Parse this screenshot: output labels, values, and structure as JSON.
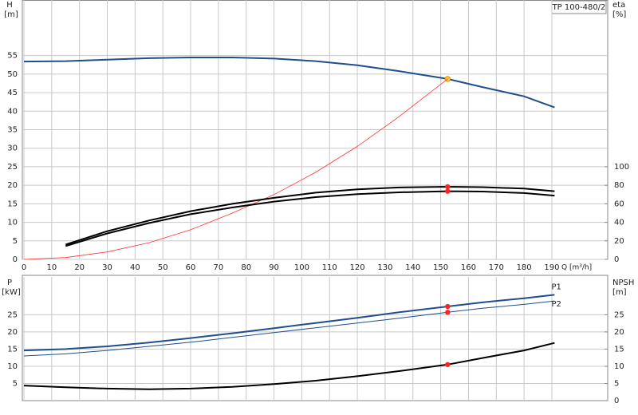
{
  "chart_data": [
    {
      "type": "line",
      "title": "TP 100-480/2",
      "xlabel": "Q [m³/h]",
      "ylabel": "H",
      "yunit": "[m]",
      "y2label": "eta",
      "y2unit": "[%]",
      "x": [
        0,
        15,
        30,
        45,
        60,
        75,
        90,
        105,
        120,
        135,
        152.5,
        165,
        180,
        191
      ],
      "xlim": [
        0,
        210
      ],
      "xticks": [
        0,
        10,
        20,
        30,
        40,
        50,
        60,
        70,
        80,
        90,
        100,
        110,
        120,
        130,
        140,
        150,
        160,
        170,
        180,
        190
      ],
      "ylim": [
        0,
        70
      ],
      "yticks": [
        0,
        5,
        10,
        15,
        20,
        25,
        30,
        35,
        40,
        45,
        50,
        55
      ],
      "y2lim": [
        0,
        280
      ],
      "y2ticks": [
        0,
        20,
        40,
        60,
        80,
        100
      ],
      "grid": true,
      "duty_point": 152.5,
      "series": [
        {
          "color": "#1f4e8c",
          "width": 2,
          "marker_color": "#ffcc33",
          "values": [
            53.4,
            53.5,
            53.9,
            54.3,
            54.5,
            54.5,
            54.2,
            53.5,
            52.4,
            50.8,
            48.7,
            46.5,
            44,
            41
          ]
        },
        {
          "color": "#ff3333",
          "width": 0.8,
          "values": [
            0,
            0.5,
            2,
            4.5,
            8,
            12.5,
            17.5,
            23.5,
            30.5,
            38.5,
            48.7,
            null,
            null,
            null
          ]
        },
        {
          "color": "#000000",
          "width": 2,
          "axis": "y2",
          "marker_color": "#ff2222",
          "values": [
            null,
            16,
            30.4,
            42,
            52,
            60,
            66.4,
            72,
            75.6,
            77.6,
            78.4,
            78,
            76.4,
            73.6
          ]
        },
        {
          "color": "#000000",
          "width": 2,
          "axis": "y2",
          "marker_color": "#ff2222",
          "values": [
            null,
            14.4,
            28,
            39.2,
            48.8,
            56,
            62.4,
            67.2,
            70.4,
            72.4,
            73.6,
            73.2,
            71.6,
            68.8
          ]
        }
      ]
    },
    {
      "type": "line",
      "ylabel": "P",
      "yunit": "[kW]",
      "y2label": "NPSH",
      "y2unit": "[m]",
      "x": [
        0,
        15,
        30,
        45,
        60,
        75,
        90,
        105,
        120,
        135,
        152.5,
        165,
        180,
        191
      ],
      "xlim": [
        0,
        210
      ],
      "xticks": [
        0,
        10,
        20,
        30,
        40,
        50,
        60,
        70,
        80,
        90,
        100,
        110,
        120,
        130,
        140,
        150,
        160,
        170,
        180,
        190
      ],
      "ylim": [
        0,
        36
      ],
      "yticks": [
        5,
        10,
        15,
        20,
        25
      ],
      "y2lim": [
        0,
        36
      ],
      "y2ticks": [
        0,
        5,
        10,
        15,
        20,
        25
      ],
      "grid": true,
      "duty_point": 152.5,
      "series": [
        {
          "name": "P1",
          "color": "#1f4e8c",
          "width": 2,
          "marker_color": "#ff2222",
          "values": [
            14.6,
            15,
            15.8,
            16.9,
            18.2,
            19.6,
            21.1,
            22.6,
            24.1,
            25.7,
            27.4,
            28.6,
            29.8,
            30.8
          ]
        },
        {
          "name": "P2",
          "color": "#1f4e8c",
          "width": 1,
          "marker_color": "#ff2222",
          "values": [
            13,
            13.6,
            14.6,
            15.8,
            17,
            18.4,
            19.8,
            21.2,
            22.6,
            24,
            25.7,
            26.9,
            28,
            29
          ]
        },
        {
          "color": "#000000",
          "width": 2,
          "axis": "y2",
          "marker_color": "#ff2222",
          "values": [
            4.4,
            3.9,
            3.5,
            3.3,
            3.5,
            4,
            4.8,
            5.8,
            7.1,
            8.6,
            10.5,
            12.4,
            14.6,
            16.8
          ]
        }
      ]
    }
  ]
}
